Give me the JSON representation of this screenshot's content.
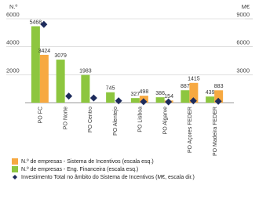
{
  "chart_data": {
    "type": "bar",
    "y_label": "N.º",
    "y2_label": "M€",
    "categories": [
      "PO FC",
      "PO Norte",
      "PO Centro",
      "PO Alentejo",
      "PO Lisboa",
      "PO Algarve",
      "PO Açores FEDER",
      "PO Madeira FEDER"
    ],
    "series": [
      {
        "name": "N.º de empresas - Eng. Financeira (escala esq.)",
        "color": "#8dc63f",
        "values": [
          5468,
          3079,
          1983,
          745,
          327,
          386,
          887,
          439
        ]
      },
      {
        "name": "N.º de empresas - Sistema de Incentivos (escala esq.)",
        "color": "#f7a941",
        "values": [
          3424,
          null,
          null,
          null,
          498,
          154,
          1415,
          883
        ]
      },
      {
        "name": "Investimento Total no âmbito do Sistema de Incentivos (M€, escala dir.)",
        "color": "#1d2b5c",
        "axis": "y2",
        "values": [
          8400,
          700,
          500,
          200,
          100,
          80,
          200,
          150
        ]
      }
    ],
    "ylim": [
      0,
      6000
    ],
    "yticks": [
      2000,
      4000,
      6000
    ],
    "y2lim": [
      0,
      9000
    ],
    "y2ticks": [
      3000,
      6000,
      9000
    ],
    "grid": true
  }
}
